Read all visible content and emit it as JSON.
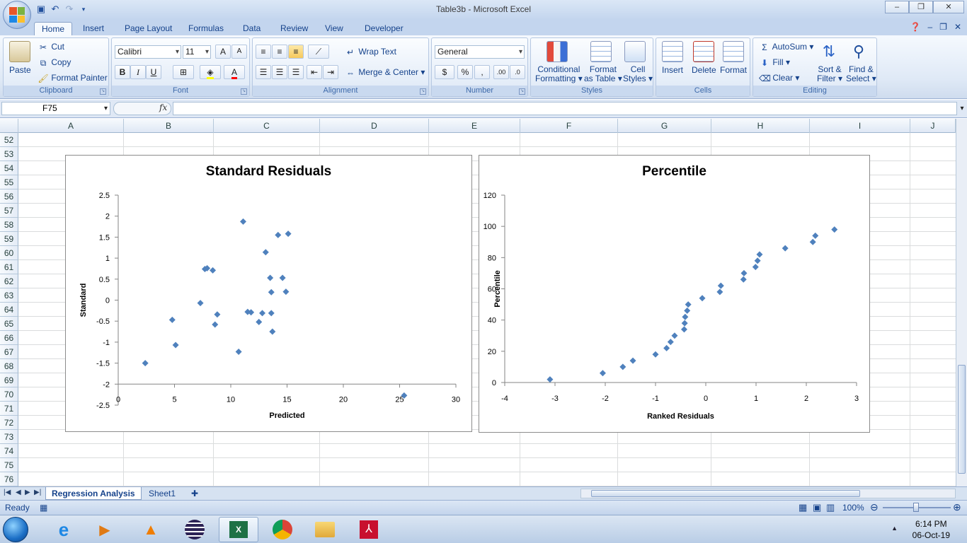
{
  "window": {
    "title": "Table3b - Microsoft Excel"
  },
  "tabs": [
    {
      "label": "Home",
      "active": true
    },
    {
      "label": "Insert"
    },
    {
      "label": "Page Layout"
    },
    {
      "label": "Formulas"
    },
    {
      "label": "Data"
    },
    {
      "label": "Review"
    },
    {
      "label": "View"
    },
    {
      "label": "Developer"
    }
  ],
  "ribbon": {
    "clipboard": {
      "label": "Clipboard",
      "paste": "Paste",
      "cut": "Cut",
      "copy": "Copy",
      "format_painter": "Format Painter"
    },
    "font": {
      "label": "Font",
      "name": "Calibri",
      "size": "11",
      "bold": "B",
      "italic": "I",
      "underline": "U"
    },
    "alignment": {
      "label": "Alignment",
      "wrap": "Wrap Text",
      "merge": "Merge & Center"
    },
    "number": {
      "label": "Number",
      "format": "General",
      "currency": "$",
      "percent": "%",
      "comma": ",",
      "inc_dec": ".00",
      "dec_dec": ".0"
    },
    "styles": {
      "label": "Styles",
      "conditional": "Conditional",
      "conditional2": "Formatting",
      "format_table": "Format",
      "format_table2": "as Table",
      "cell": "Cell",
      "cell2": "Styles"
    },
    "cells": {
      "label": "Cells",
      "insert": "Insert",
      "delete": "Delete",
      "format": "Format"
    },
    "editing": {
      "label": "Editing",
      "autosum": "AutoSum",
      "fill": "Fill",
      "clear": "Clear",
      "sort": "Sort &",
      "sort2": "Filter",
      "find": "Find &",
      "find2": "Select"
    }
  },
  "formula_bar": {
    "name_box": "F75",
    "fx": "fx",
    "value": ""
  },
  "columns": [
    "A",
    "B",
    "C",
    "D",
    "E",
    "F",
    "G",
    "H",
    "I",
    "J"
  ],
  "rows": [
    "52",
    "53",
    "54",
    "55",
    "56",
    "57",
    "58",
    "59",
    "60",
    "61",
    "62",
    "63",
    "64",
    "65",
    "66",
    "67",
    "68",
    "69",
    "70",
    "71",
    "72",
    "73",
    "74",
    "75",
    "76"
  ],
  "sheets": [
    {
      "name": "Regression Analysis",
      "active": true
    },
    {
      "name": "Sheet1"
    }
  ],
  "status": {
    "ready": "Ready",
    "zoom": "100%"
  },
  "clock": {
    "time": "6:14 PM",
    "date": "06-Oct-19"
  },
  "chart_data": [
    {
      "type": "scatter",
      "title": "Standard Residuals",
      "xlabel": "Predicted",
      "ylabel": "Standard",
      "xlim": [
        0,
        30
      ],
      "ylim": [
        -2.5,
        2.5
      ],
      "xticks": [
        "0",
        "5",
        "10",
        "15",
        "20",
        "25",
        "30"
      ],
      "yticks": [
        "2.5",
        "2",
        "1.5",
        "1",
        "0.5",
        "0",
        "-0.5",
        "-1",
        "-1.5",
        "-2",
        "-2.5"
      ],
      "color": "#4f81bd",
      "points": [
        [
          2.4,
          -1.5
        ],
        [
          4.8,
          -0.47
        ],
        [
          5.1,
          -1.07
        ],
        [
          7.3,
          -0.07
        ],
        [
          7.7,
          0.74
        ],
        [
          7.9,
          0.76
        ],
        [
          8.4,
          0.71
        ],
        [
          8.6,
          -0.58
        ],
        [
          8.8,
          -0.34
        ],
        [
          10.7,
          -1.23
        ],
        [
          11.1,
          1.87
        ],
        [
          11.5,
          -0.28
        ],
        [
          11.8,
          -0.29
        ],
        [
          12.5,
          -0.52
        ],
        [
          12.8,
          -0.31
        ],
        [
          13.1,
          1.14
        ],
        [
          13.5,
          0.53
        ],
        [
          13.6,
          0.19
        ],
        [
          13.6,
          -0.31
        ],
        [
          13.7,
          -0.75
        ],
        [
          14.2,
          1.55
        ],
        [
          14.6,
          0.53
        ],
        [
          14.9,
          0.2
        ],
        [
          15.1,
          1.58
        ],
        [
          25.4,
          -2.27
        ]
      ]
    },
    {
      "type": "scatter",
      "title": "Percentile",
      "xlabel": "Ranked Residuals",
      "ylabel": "Percentile",
      "xlim": [
        -4,
        3
      ],
      "ylim": [
        0,
        120
      ],
      "xticks": [
        "-4",
        "-3",
        "-2",
        "-1",
        "0",
        "1",
        "2",
        "3"
      ],
      "yticks": [
        "120",
        "100",
        "80",
        "60",
        "40",
        "20",
        "0"
      ],
      "color": "#4f81bd",
      "points": [
        [
          -3.1,
          2
        ],
        [
          -2.05,
          6
        ],
        [
          -1.65,
          10
        ],
        [
          -1.45,
          14
        ],
        [
          -1.0,
          18
        ],
        [
          -0.78,
          22
        ],
        [
          -0.7,
          26
        ],
        [
          -0.62,
          30
        ],
        [
          -0.43,
          34
        ],
        [
          -0.42,
          38
        ],
        [
          -0.41,
          42
        ],
        [
          -0.37,
          46
        ],
        [
          -0.35,
          50
        ],
        [
          -0.07,
          54
        ],
        [
          0.28,
          58
        ],
        [
          0.3,
          62
        ],
        [
          0.75,
          66
        ],
        [
          0.76,
          70
        ],
        [
          0.99,
          74
        ],
        [
          1.03,
          78
        ],
        [
          1.07,
          82
        ],
        [
          1.58,
          86
        ],
        [
          2.13,
          90
        ],
        [
          2.18,
          94
        ],
        [
          2.56,
          98
        ]
      ]
    }
  ]
}
